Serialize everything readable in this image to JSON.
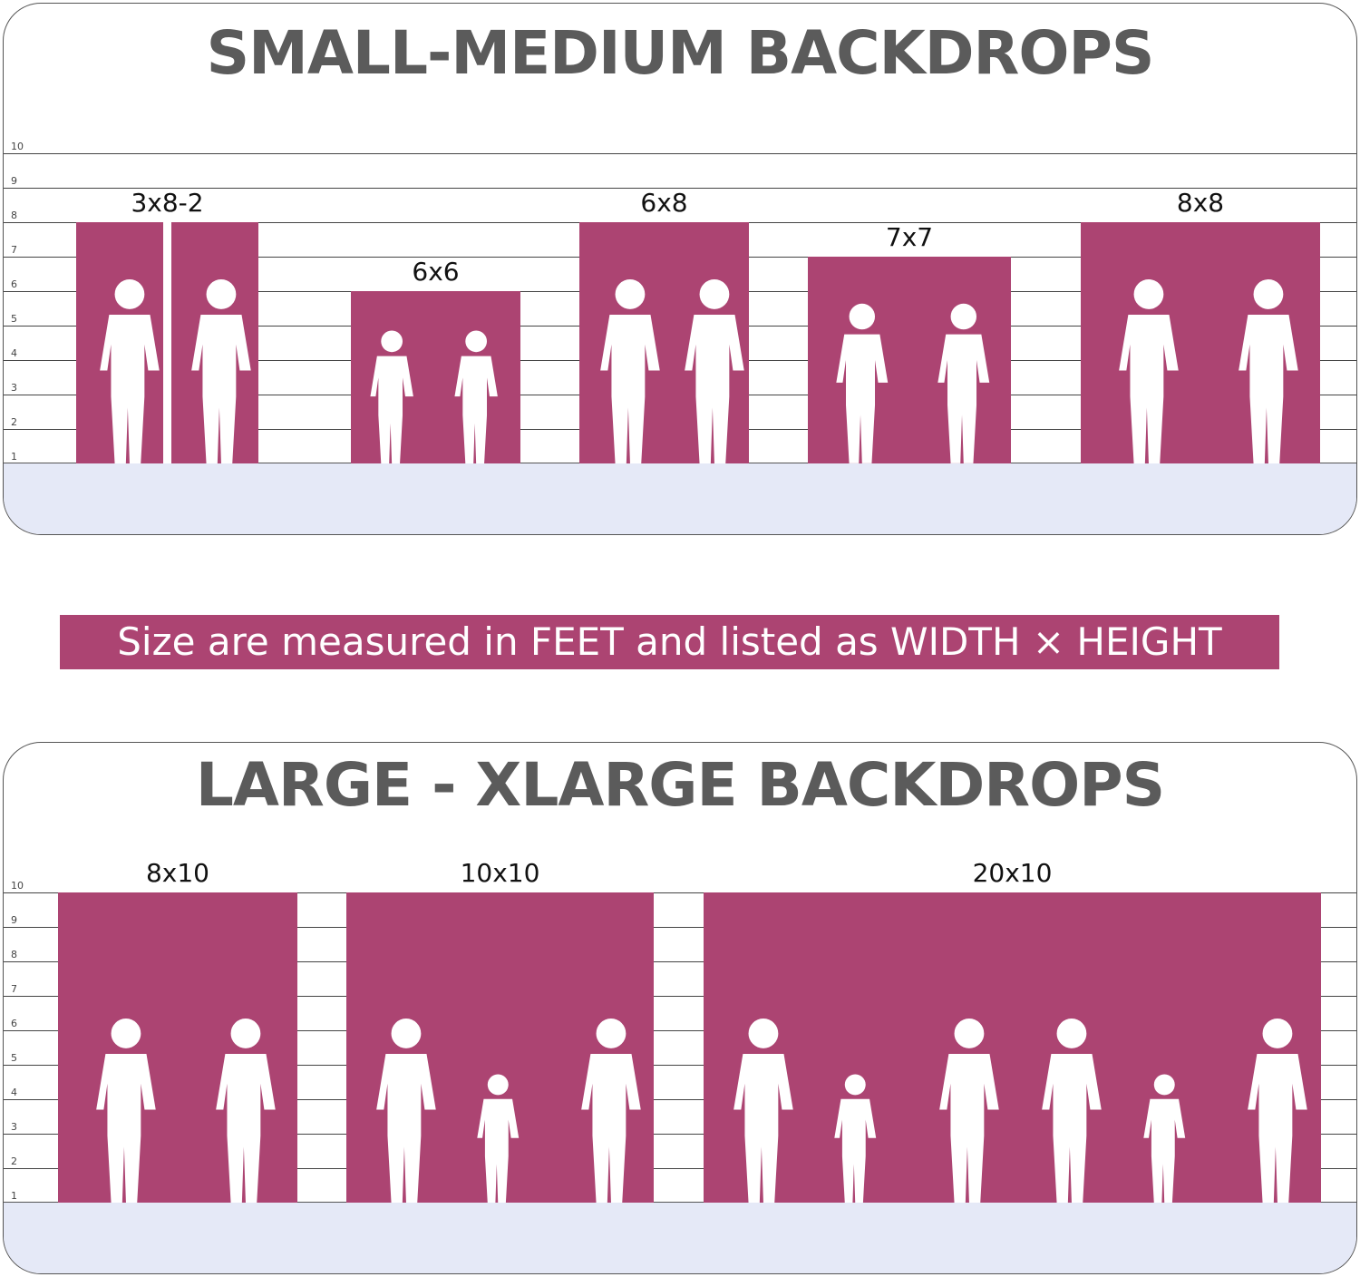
{
  "small_medium": {
    "title": "SMALL-MEDIUM BACKDROPS",
    "backdrops": [
      {
        "label": "3x8-2",
        "width_ft": 3,
        "height_ft": 8,
        "panels": 2
      },
      {
        "label": "6x6",
        "width_ft": 6,
        "height_ft": 6
      },
      {
        "label": "6x8",
        "width_ft": 6,
        "height_ft": 8
      },
      {
        "label": "7x7",
        "width_ft": 7,
        "height_ft": 7
      },
      {
        "label": "8x8",
        "width_ft": 8,
        "height_ft": 8
      }
    ]
  },
  "banner": {
    "text": "Size are measured in FEET and listed as WIDTH × HEIGHT"
  },
  "large_xlarge": {
    "title": "LARGE - XLARGE BACKDROPS",
    "backdrops": [
      {
        "label": "8x10",
        "width_ft": 8,
        "height_ft": 10
      },
      {
        "label": "10x10",
        "width_ft": 10,
        "height_ft": 10
      },
      {
        "label": "20x10",
        "width_ft": 20,
        "height_ft": 10
      }
    ]
  },
  "scale_ticks": [
    "10",
    "9",
    "8",
    "7",
    "6",
    "5",
    "4",
    "3",
    "2",
    "1"
  ],
  "colors": {
    "backdrop": "#ac4472",
    "floor": "#e5e9f7",
    "title": "#5b5b5b"
  }
}
